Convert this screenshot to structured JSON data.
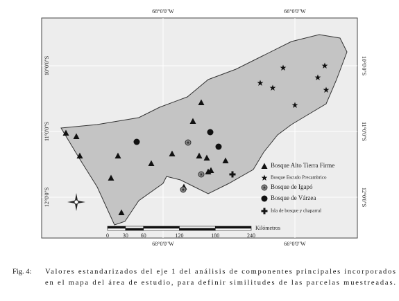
{
  "map": {
    "top_labels": [
      "68°0'0\"W",
      "66°0'0\"W"
    ],
    "bottom_labels": [
      "68°0'0\"W",
      "66°0'0\"W"
    ],
    "left_labels": [
      "10°0'0\"S",
      "11°0'0\"S",
      "12°0'0\"S"
    ],
    "right_labels": [
      "10°0'0\"S",
      "11°0'0\"S",
      "12°0'0\"S"
    ],
    "legend": [
      "Bosque Alto Tierra Firme",
      "Bosque Escudo Precambrico",
      "Bosque de Igapó",
      "Bosque de Várzea",
      "Isla de bosque y chaparral"
    ],
    "scale": {
      "ticks": [
        0,
        30,
        60,
        120,
        180,
        240
      ],
      "unit": "Kilómetros"
    }
  },
  "caption": {
    "label": "Fig. 4:",
    "lines": [
      "Valores estandarizados del eje 1 del análisis de componentes principales incorporados",
      "en el mapa del área de estudio, para definir similitudes de las parcelas muestreadas."
    ]
  }
}
